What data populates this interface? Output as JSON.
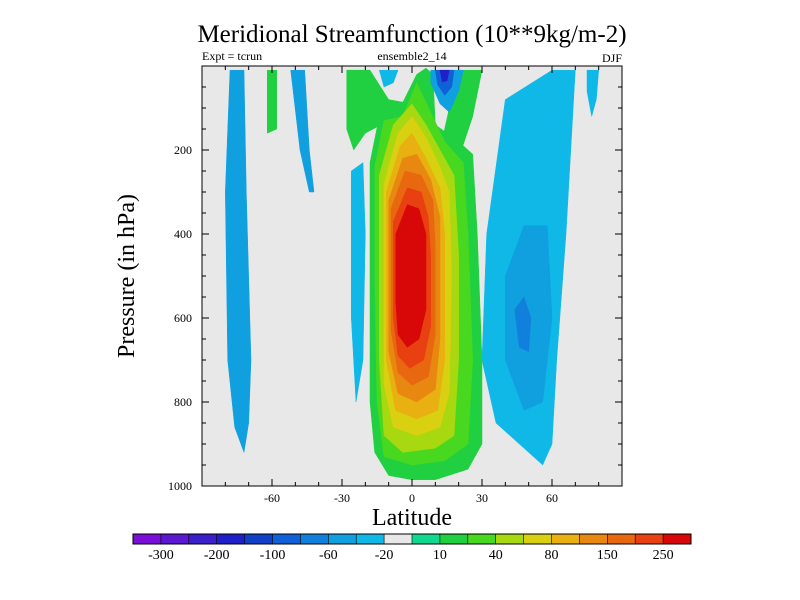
{
  "chart_data": {
    "type": "heatmap",
    "title": "Meridional Streamfunction (10**9kg/m-2)",
    "left_label": "Expt = tcrun",
    "center_label": "ensemble2_14",
    "right_label": "DJF",
    "xlabel": "Latitude",
    "ylabel": "Pressure (in hPa)",
    "xlim": [
      -90,
      90
    ],
    "ylim": [
      1000,
      0
    ],
    "xticks": [
      -60,
      -30,
      0,
      30,
      60
    ],
    "xtick_labels": [
      "-60",
      "-30",
      "0",
      "30",
      "60"
    ],
    "yticks": [
      200,
      400,
      600,
      800,
      1000
    ],
    "ytick_labels": [
      "200",
      "400",
      "600",
      "800",
      "1000"
    ],
    "colorbar": {
      "colors": [
        "#7a10d8",
        "#5a18d0",
        "#3a20c8",
        "#2020c8",
        "#1040c8",
        "#1060d8",
        "#1080dc",
        "#10a0e0",
        "#10b8e8",
        "#e8e8e8",
        "#10d890",
        "#20d040",
        "#48d820",
        "#a8d810",
        "#d8d010",
        "#e8b010",
        "#e88810",
        "#e86810",
        "#e84010",
        "#d80808"
      ],
      "labels": [
        "-300",
        "-200",
        "-100",
        "-60",
        "-20",
        "10",
        "40",
        "80",
        "150",
        "250"
      ]
    },
    "contours": [
      {
        "name": "cell-west-1",
        "fill": "#10a0e0",
        "points": [
          [
            -78,
            10
          ],
          [
            -72,
            10
          ],
          [
            -71,
            300
          ],
          [
            -69,
            700
          ],
          [
            -70,
            850
          ],
          [
            -72,
            920
          ],
          [
            -76,
            860
          ],
          [
            -79,
            700
          ],
          [
            -80,
            300
          ]
        ]
      },
      {
        "name": "cell-west-2",
        "fill": "#10a0e0",
        "points": [
          [
            -52,
            10
          ],
          [
            -46,
            10
          ],
          [
            -44,
            200
          ],
          [
            -42,
            300
          ],
          [
            -44,
            300
          ],
          [
            -48,
            200
          ]
        ]
      },
      {
        "name": "cell-west-3",
        "fill": "#20d040",
        "points": [
          [
            -62,
            10
          ],
          [
            -58,
            10
          ],
          [
            -58,
            150
          ],
          [
            -62,
            160
          ]
        ]
      },
      {
        "name": "cell-east-small",
        "fill": "#10b8e8",
        "points": [
          [
            75,
            10
          ],
          [
            80,
            10
          ],
          [
            79,
            80
          ],
          [
            77,
            120
          ],
          [
            75,
            60
          ]
        ]
      },
      {
        "name": "cell-nh-ferrel",
        "fill": "#10b8e8",
        "points": [
          [
            32,
            400
          ],
          [
            40,
            80
          ],
          [
            60,
            10
          ],
          [
            70,
            10
          ],
          [
            66,
            400
          ],
          [
            62,
            700
          ],
          [
            60,
            900
          ],
          [
            56,
            950
          ],
          [
            50,
            920
          ],
          [
            36,
            850
          ],
          [
            30,
            700
          ]
        ]
      },
      {
        "name": "cell-nh-ferrel-inner",
        "fill": "#10a0e0",
        "points": [
          [
            40,
            500
          ],
          [
            48,
            380
          ],
          [
            58,
            380
          ],
          [
            60,
            600
          ],
          [
            56,
            800
          ],
          [
            48,
            820
          ],
          [
            40,
            700
          ]
        ]
      },
      {
        "name": "cell-nh-ferrel-core",
        "fill": "#1080dc",
        "points": [
          [
            44,
            580
          ],
          [
            48,
            550
          ],
          [
            51,
            600
          ],
          [
            50,
            680
          ],
          [
            46,
            670
          ]
        ]
      },
      {
        "name": "cell-sh-small",
        "fill": "#10b8e8",
        "points": [
          [
            -26,
            250
          ],
          [
            -21,
            230
          ],
          [
            -20,
            400
          ],
          [
            -21,
            700
          ],
          [
            -24,
            800
          ],
          [
            -26,
            600
          ]
        ]
      },
      {
        "name": "hadley-10",
        "fill": "#20d040",
        "points": [
          [
            -18,
            230
          ],
          [
            -14,
            120
          ],
          [
            -6,
            110
          ],
          [
            2,
            20
          ],
          [
            6,
            5
          ],
          [
            9,
            20
          ],
          [
            10,
            140
          ],
          [
            20,
            180
          ],
          [
            26,
            210
          ],
          [
            28,
            400
          ],
          [
            30,
            700
          ],
          [
            30,
            900
          ],
          [
            24,
            960
          ],
          [
            10,
            985
          ],
          [
            0,
            985
          ],
          [
            -10,
            975
          ],
          [
            -16,
            920
          ],
          [
            -18,
            800
          ],
          [
            -18,
            500
          ]
        ]
      },
      {
        "name": "hadley-upper-left",
        "fill": "#20d040",
        "points": [
          [
            -28,
            10
          ],
          [
            -18,
            10
          ],
          [
            -10,
            80
          ],
          [
            0,
            90
          ],
          [
            -10,
            130
          ],
          [
            -20,
            160
          ],
          [
            -25,
            200
          ],
          [
            -28,
            150
          ]
        ]
      },
      {
        "name": "hadley-upper-right",
        "fill": "#20d040",
        "points": [
          [
            20,
            10
          ],
          [
            30,
            10
          ],
          [
            26,
            120
          ],
          [
            20,
            220
          ],
          [
            12,
            200
          ],
          [
            16,
            100
          ]
        ]
      },
      {
        "name": "hadley-40",
        "fill": "#48d820",
        "points": [
          [
            -16,
            240
          ],
          [
            -12,
            130
          ],
          [
            -4,
            120
          ],
          [
            2,
            40
          ],
          [
            8,
            110
          ],
          [
            14,
            180
          ],
          [
            22,
            230
          ],
          [
            24,
            400
          ],
          [
            26,
            700
          ],
          [
            24,
            900
          ],
          [
            14,
            940
          ],
          [
            0,
            950
          ],
          [
            -12,
            930
          ],
          [
            -15,
            800
          ],
          [
            -16,
            500
          ]
        ]
      },
      {
        "name": "hadley-80",
        "fill": "#a8d810",
        "points": [
          [
            -14,
            260
          ],
          [
            -8,
            140
          ],
          [
            0,
            90
          ],
          [
            6,
            140
          ],
          [
            12,
            200
          ],
          [
            18,
            260
          ],
          [
            20,
            450
          ],
          [
            20,
            700
          ],
          [
            18,
            880
          ],
          [
            10,
            910
          ],
          [
            -4,
            920
          ],
          [
            -12,
            880
          ],
          [
            -14,
            700
          ],
          [
            -14,
            450
          ]
        ]
      },
      {
        "name": "hadley-150",
        "fill": "#d8d010",
        "points": [
          [
            -12,
            280
          ],
          [
            -6,
            160
          ],
          [
            0,
            120
          ],
          [
            6,
            170
          ],
          [
            12,
            240
          ],
          [
            16,
            300
          ],
          [
            17,
            500
          ],
          [
            16,
            780
          ],
          [
            12,
            860
          ],
          [
            2,
            880
          ],
          [
            -8,
            860
          ],
          [
            -12,
            760
          ],
          [
            -12,
            480
          ]
        ]
      },
      {
        "name": "hadley-200",
        "fill": "#e8b010",
        "points": [
          [
            -11,
            300
          ],
          [
            -5,
            190
          ],
          [
            0,
            160
          ],
          [
            6,
            220
          ],
          [
            12,
            290
          ],
          [
            14,
            400
          ],
          [
            14,
            700
          ],
          [
            11,
            820
          ],
          [
            2,
            840
          ],
          [
            -7,
            820
          ],
          [
            -11,
            700
          ],
          [
            -11,
            450
          ]
        ]
      },
      {
        "name": "hadley-250",
        "fill": "#e88810",
        "points": [
          [
            -10,
            320
          ],
          [
            -4,
            220
          ],
          [
            2,
            210
          ],
          [
            8,
            270
          ],
          [
            12,
            360
          ],
          [
            12,
            650
          ],
          [
            10,
            770
          ],
          [
            2,
            800
          ],
          [
            -6,
            780
          ],
          [
            -10,
            680
          ],
          [
            -10,
            450
          ]
        ]
      },
      {
        "name": "hadley-300",
        "fill": "#e86810",
        "points": [
          [
            -9,
            340
          ],
          [
            -3,
            250
          ],
          [
            4,
            260
          ],
          [
            9,
            320
          ],
          [
            10,
            430
          ],
          [
            10,
            640
          ],
          [
            7,
            740
          ],
          [
            0,
            760
          ],
          [
            -6,
            730
          ],
          [
            -9,
            630
          ],
          [
            -9,
            450
          ]
        ]
      },
      {
        "name": "hadley-350",
        "fill": "#e84010",
        "points": [
          [
            -8,
            370
          ],
          [
            -2,
            290
          ],
          [
            4,
            300
          ],
          [
            7,
            360
          ],
          [
            8,
            450
          ],
          [
            8,
            620
          ],
          [
            5,
            700
          ],
          [
            -1,
            720
          ],
          [
            -6,
            690
          ],
          [
            -8,
            600
          ],
          [
            -8,
            460
          ]
        ]
      },
      {
        "name": "hadley-400",
        "fill": "#d80808",
        "points": [
          [
            -7,
            400
          ],
          [
            -2,
            330
          ],
          [
            3,
            340
          ],
          [
            6,
            400
          ],
          [
            6,
            580
          ],
          [
            3,
            650
          ],
          [
            -2,
            670
          ],
          [
            -6,
            640
          ],
          [
            -7,
            560
          ]
        ]
      },
      {
        "name": "upper-neg-green",
        "fill": "#20d040",
        "points": [
          [
            -28,
            10
          ],
          [
            -18,
            10
          ],
          [
            -16,
            60
          ],
          [
            -18,
            120
          ],
          [
            -24,
            140
          ],
          [
            -27,
            100
          ]
        ]
      },
      {
        "name": "upper-neg-cyan",
        "fill": "#10b8e8",
        "points": [
          [
            -14,
            10
          ],
          [
            -6,
            10
          ],
          [
            -8,
            40
          ],
          [
            -12,
            50
          ]
        ]
      },
      {
        "name": "upper-neg-blue-outer",
        "fill": "#10a0e0",
        "points": [
          [
            8,
            10
          ],
          [
            22,
            10
          ],
          [
            20,
            60
          ],
          [
            16,
            110
          ],
          [
            12,
            90
          ],
          [
            8,
            40
          ]
        ]
      },
      {
        "name": "upper-neg-blue-inner",
        "fill": "#1060d8",
        "points": [
          [
            10,
            10
          ],
          [
            18,
            10
          ],
          [
            17,
            50
          ],
          [
            14,
            70
          ],
          [
            11,
            45
          ]
        ]
      },
      {
        "name": "upper-neg-core",
        "fill": "#2020c8",
        "points": [
          [
            12,
            10
          ],
          [
            16,
            10
          ],
          [
            15,
            35
          ],
          [
            13,
            38
          ]
        ]
      }
    ]
  }
}
